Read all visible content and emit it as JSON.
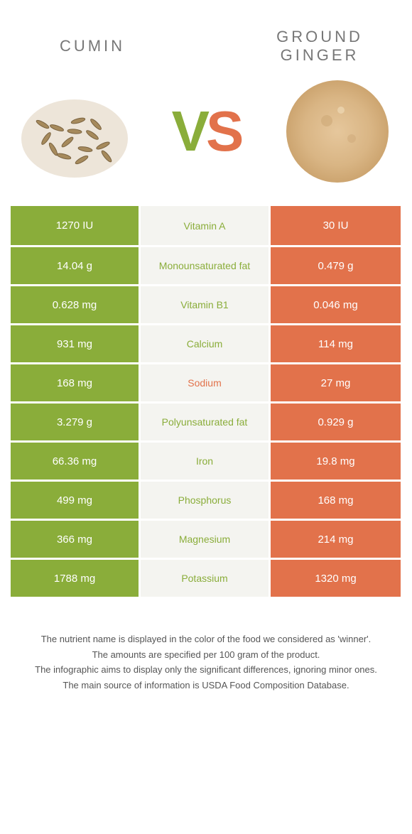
{
  "left_name": "CUMIN",
  "right_name": "GROUND GINGER",
  "vs_v": "V",
  "vs_s": "S",
  "colors": {
    "left": "#8aad3a",
    "right": "#e2724b",
    "mid_bg": "#f4f4f0"
  },
  "rows": [
    {
      "left": "1270 IU",
      "label": "Vitamin A",
      "right": "30 IU",
      "winner": "left"
    },
    {
      "left": "14.04 g",
      "label": "Monounsaturated fat",
      "right": "0.479 g",
      "winner": "left"
    },
    {
      "left": "0.628 mg",
      "label": "Vitamin B1",
      "right": "0.046 mg",
      "winner": "left"
    },
    {
      "left": "931 mg",
      "label": "Calcium",
      "right": "114 mg",
      "winner": "left"
    },
    {
      "left": "168 mg",
      "label": "Sodium",
      "right": "27 mg",
      "winner": "right"
    },
    {
      "left": "3.279 g",
      "label": "Polyunsaturated fat",
      "right": "0.929 g",
      "winner": "left"
    },
    {
      "left": "66.36 mg",
      "label": "Iron",
      "right": "19.8 mg",
      "winner": "left"
    },
    {
      "left": "499 mg",
      "label": "Phosphorus",
      "right": "168 mg",
      "winner": "left"
    },
    {
      "left": "366 mg",
      "label": "Magnesium",
      "right": "214 mg",
      "winner": "left"
    },
    {
      "left": "1788 mg",
      "label": "Potassium",
      "right": "1320 mg",
      "winner": "left"
    }
  ],
  "footnotes": [
    "The nutrient name is displayed in the color of the food we considered as 'winner'.",
    "The amounts are specified per 100 gram of the product.",
    "The infographic aims to display only the significant differences, ignoring minor ones.",
    "The main source of information is USDA Food Composition Database."
  ]
}
